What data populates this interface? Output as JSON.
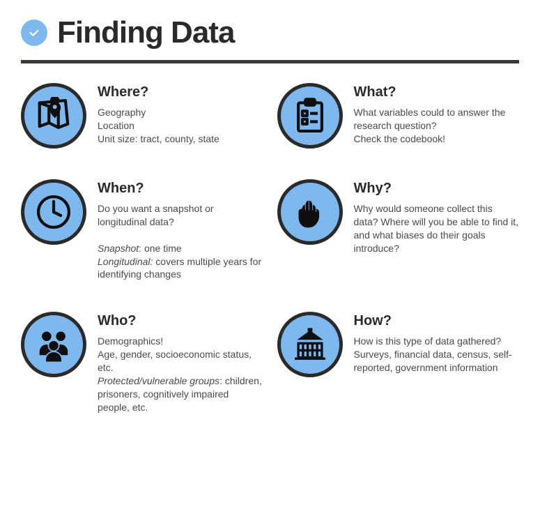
{
  "colors": {
    "accent": "#7fb8ee",
    "icon_fill": "#0f0f0f",
    "border": "#2a2a2a",
    "heading": "#2a2a2a",
    "body": "#4a4a4a",
    "rule": "#3a3a3a",
    "background": "#ffffff"
  },
  "typography": {
    "title_fontsize": 44,
    "heading_fontsize": 20,
    "body_fontsize": 14
  },
  "layout": {
    "columns": 2,
    "rows": 3,
    "icon_diameter": 94,
    "icon_border_width": 5
  },
  "title": "Finding Data",
  "items": [
    {
      "heading": "Where?",
      "body": "Geography\nLocation\nUnit size: tract, county, state",
      "icon": "map-pin"
    },
    {
      "heading": "What?",
      "body": "What variables could to answer the research question?\nCheck the codebook!",
      "icon": "clipboard"
    },
    {
      "heading": "When?",
      "body_html": "Do you want a snapshot or longitudinal data?\n\n<em>Snapshot</em>: one time\n<em>Longitudinal:</em> covers multiple years for identifying changes",
      "icon": "clock"
    },
    {
      "heading": "Why?",
      "body": "Why would someone collect this data? Where will you be able to find it, and what biases do their goals introduce?",
      "icon": "fist"
    },
    {
      "heading": "Who?",
      "body_html": "Demographics!\nAge, gender, socioeconomic status, etc.\n<em>Protected/vulnerable groups</em>: children, prisoners, cognitively impaired people, etc.",
      "icon": "people"
    },
    {
      "heading": "How?",
      "body": "How is this type of data gathered?\nSurveys, financial data, census, self-reported, government information",
      "icon": "building"
    }
  ]
}
